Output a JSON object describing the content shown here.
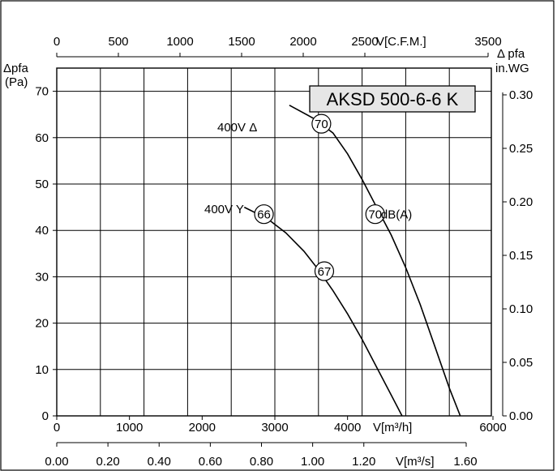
{
  "chart_data": {
    "type": "line",
    "title": "AKSD 500-6-6 K",
    "xlabel": "V[m³/h]",
    "ylabel_left": [
      "Δpfa",
      "(Pa)"
    ],
    "ylabel_right": [
      "Δ pfa",
      "in.WG"
    ],
    "xlim": [
      0,
      6000
    ],
    "ylim": [
      0,
      75
    ],
    "y_ticks": [
      0,
      10,
      20,
      30,
      40,
      50,
      60,
      70
    ],
    "y_tick_labels": [
      "0",
      "10",
      "20",
      "30",
      "40",
      "50",
      "60",
      "70"
    ],
    "x_ticks": [
      0,
      1000,
      2000,
      3000,
      4000,
      6000
    ],
    "x_tick_labels": [
      "0",
      "1000",
      "2000",
      "3000",
      "4000",
      "6000"
    ],
    "grid": true,
    "top_axis": {
      "label": "V[C.F.M.]",
      "max_label": "3500",
      "ticks": [
        0,
        500,
        1000,
        1500,
        2000,
        2500
      ],
      "tick_labels": [
        "0",
        "500",
        "1000",
        "1500",
        "2000",
        "2500"
      ],
      "range": [
        0,
        3500
      ]
    },
    "bottom_axis2": {
      "label": "V[m³/s]",
      "max_label": "1.60",
      "ticks": [
        0,
        0.2,
        0.4,
        0.6,
        0.8,
        1.0,
        1.2
      ],
      "tick_labels": [
        "0.00",
        "0.20",
        "0.40",
        "0.60",
        "0.80",
        "1.00",
        "1.20"
      ],
      "range": [
        0,
        1.6
      ]
    },
    "right_axis": {
      "ticks": [
        0,
        0.05,
        0.1,
        0.15,
        0.2,
        0.25,
        0.3
      ],
      "tick_labels": [
        "0.00",
        "0.05",
        "0.10",
        "0.15",
        "0.20",
        "0.25",
        "0.30"
      ],
      "range": [
        0,
        0.3
      ]
    },
    "series": [
      {
        "name": "400V Δ",
        "x": [
          3200,
          3550,
          3800,
          4000,
          4200,
          4400,
          4600,
          4800,
          5000,
          5200,
          5400,
          5550
        ],
        "y": [
          67,
          64,
          61,
          56.5,
          51,
          45,
          39,
          32,
          24,
          15,
          6,
          0
        ]
      },
      {
        "name": "400V Y",
        "x": [
          2580,
          2900,
          3150,
          3400,
          3600,
          3800,
          4000,
          4200,
          4400,
          4600,
          4750
        ],
        "y": [
          45,
          42.5,
          39.5,
          35.5,
          31.5,
          27,
          22,
          16.5,
          10.5,
          4.5,
          0
        ]
      }
    ],
    "annotations": [
      {
        "text": "70",
        "x": 3640,
        "y": 63,
        "circled": true
      },
      {
        "text": "70",
        "x": 4380,
        "y": 43.5,
        "circled": true
      },
      {
        "text": "dB(A)",
        "x": 4460,
        "y": 43.5,
        "circled": false
      },
      {
        "text": "66",
        "x": 2850,
        "y": 43.5,
        "circled": true
      },
      {
        "text": "67",
        "x": 3680,
        "y": 31.2,
        "circled": true
      }
    ]
  }
}
